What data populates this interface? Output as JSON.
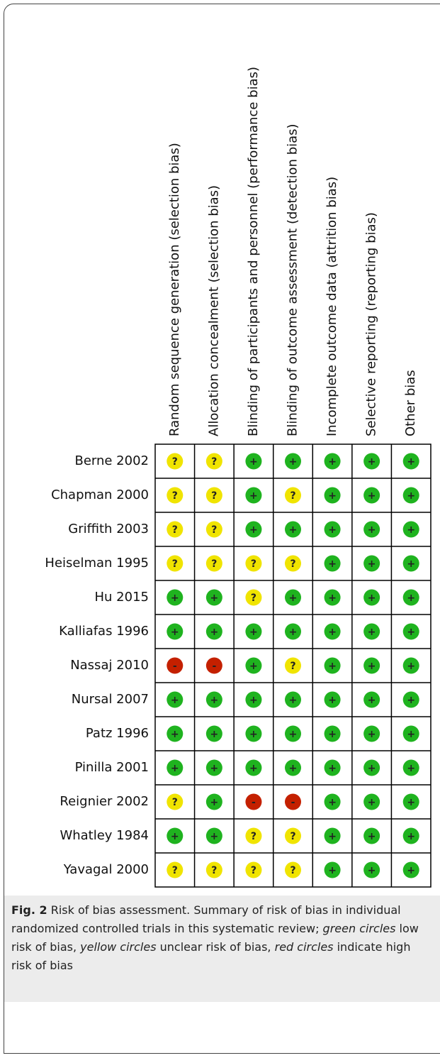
{
  "columns": [
    "Random sequence generation (selection bias)",
    "Allocation concealment (selection bias)",
    "Blinding of participants and personnel (performance bias)",
    "Blinding of outcome assessment (detection bias)",
    "Incomplete outcome data (attrition bias)",
    "Selective reporting (reporting bias)",
    "Other bias"
  ],
  "rows": [
    {
      "study": "Berne 2002",
      "ratings": [
        "?",
        "?",
        "+",
        "+",
        "+",
        "+",
        "+"
      ]
    },
    {
      "study": "Chapman 2000",
      "ratings": [
        "?",
        "?",
        "+",
        "?",
        "+",
        "+",
        "+"
      ]
    },
    {
      "study": "Griffith 2003",
      "ratings": [
        "?",
        "?",
        "+",
        "+",
        "+",
        "+",
        "+"
      ]
    },
    {
      "study": "Heiselman 1995",
      "ratings": [
        "?",
        "?",
        "?",
        "?",
        "+",
        "+",
        "+"
      ]
    },
    {
      "study": "Hu 2015",
      "ratings": [
        "+",
        "+",
        "?",
        "+",
        "+",
        "+",
        "+"
      ]
    },
    {
      "study": "Kalliafas 1996",
      "ratings": [
        "+",
        "+",
        "+",
        "+",
        "+",
        "+",
        "+"
      ]
    },
    {
      "study": "Nassaj 2010",
      "ratings": [
        "-",
        "-",
        "+",
        "?",
        "+",
        "+",
        "+"
      ]
    },
    {
      "study": "Nursal 2007",
      "ratings": [
        "+",
        "+",
        "+",
        "+",
        "+",
        "+",
        "+"
      ]
    },
    {
      "study": "Patz 1996",
      "ratings": [
        "+",
        "+",
        "+",
        "+",
        "+",
        "+",
        "+"
      ]
    },
    {
      "study": "Pinilla 2001",
      "ratings": [
        "+",
        "+",
        "+",
        "+",
        "+",
        "+",
        "+"
      ]
    },
    {
      "study": "Reignier 2002",
      "ratings": [
        "?",
        "+",
        "-",
        "-",
        "+",
        "+",
        "+"
      ]
    },
    {
      "study": "Whatley 1984",
      "ratings": [
        "+",
        "+",
        "?",
        "?",
        "+",
        "+",
        "+"
      ]
    },
    {
      "study": "Yavagal 2000",
      "ratings": [
        "?",
        "?",
        "?",
        "?",
        "+",
        "+",
        "+"
      ]
    }
  ],
  "colors": {
    "+": "#1fb31f",
    "?": "#f0e400",
    "-": "#c42000"
  },
  "caption": {
    "label": "Fig. 2",
    "parts": [
      " Risk of bias assessment. Summary of risk of bias in individual randomized controlled trials in this systematic review; ",
      "green circles",
      " low risk of bias, ",
      "yellow circles",
      " unclear risk of bias, ",
      "red circles",
      " indicate high risk of bias"
    ]
  }
}
